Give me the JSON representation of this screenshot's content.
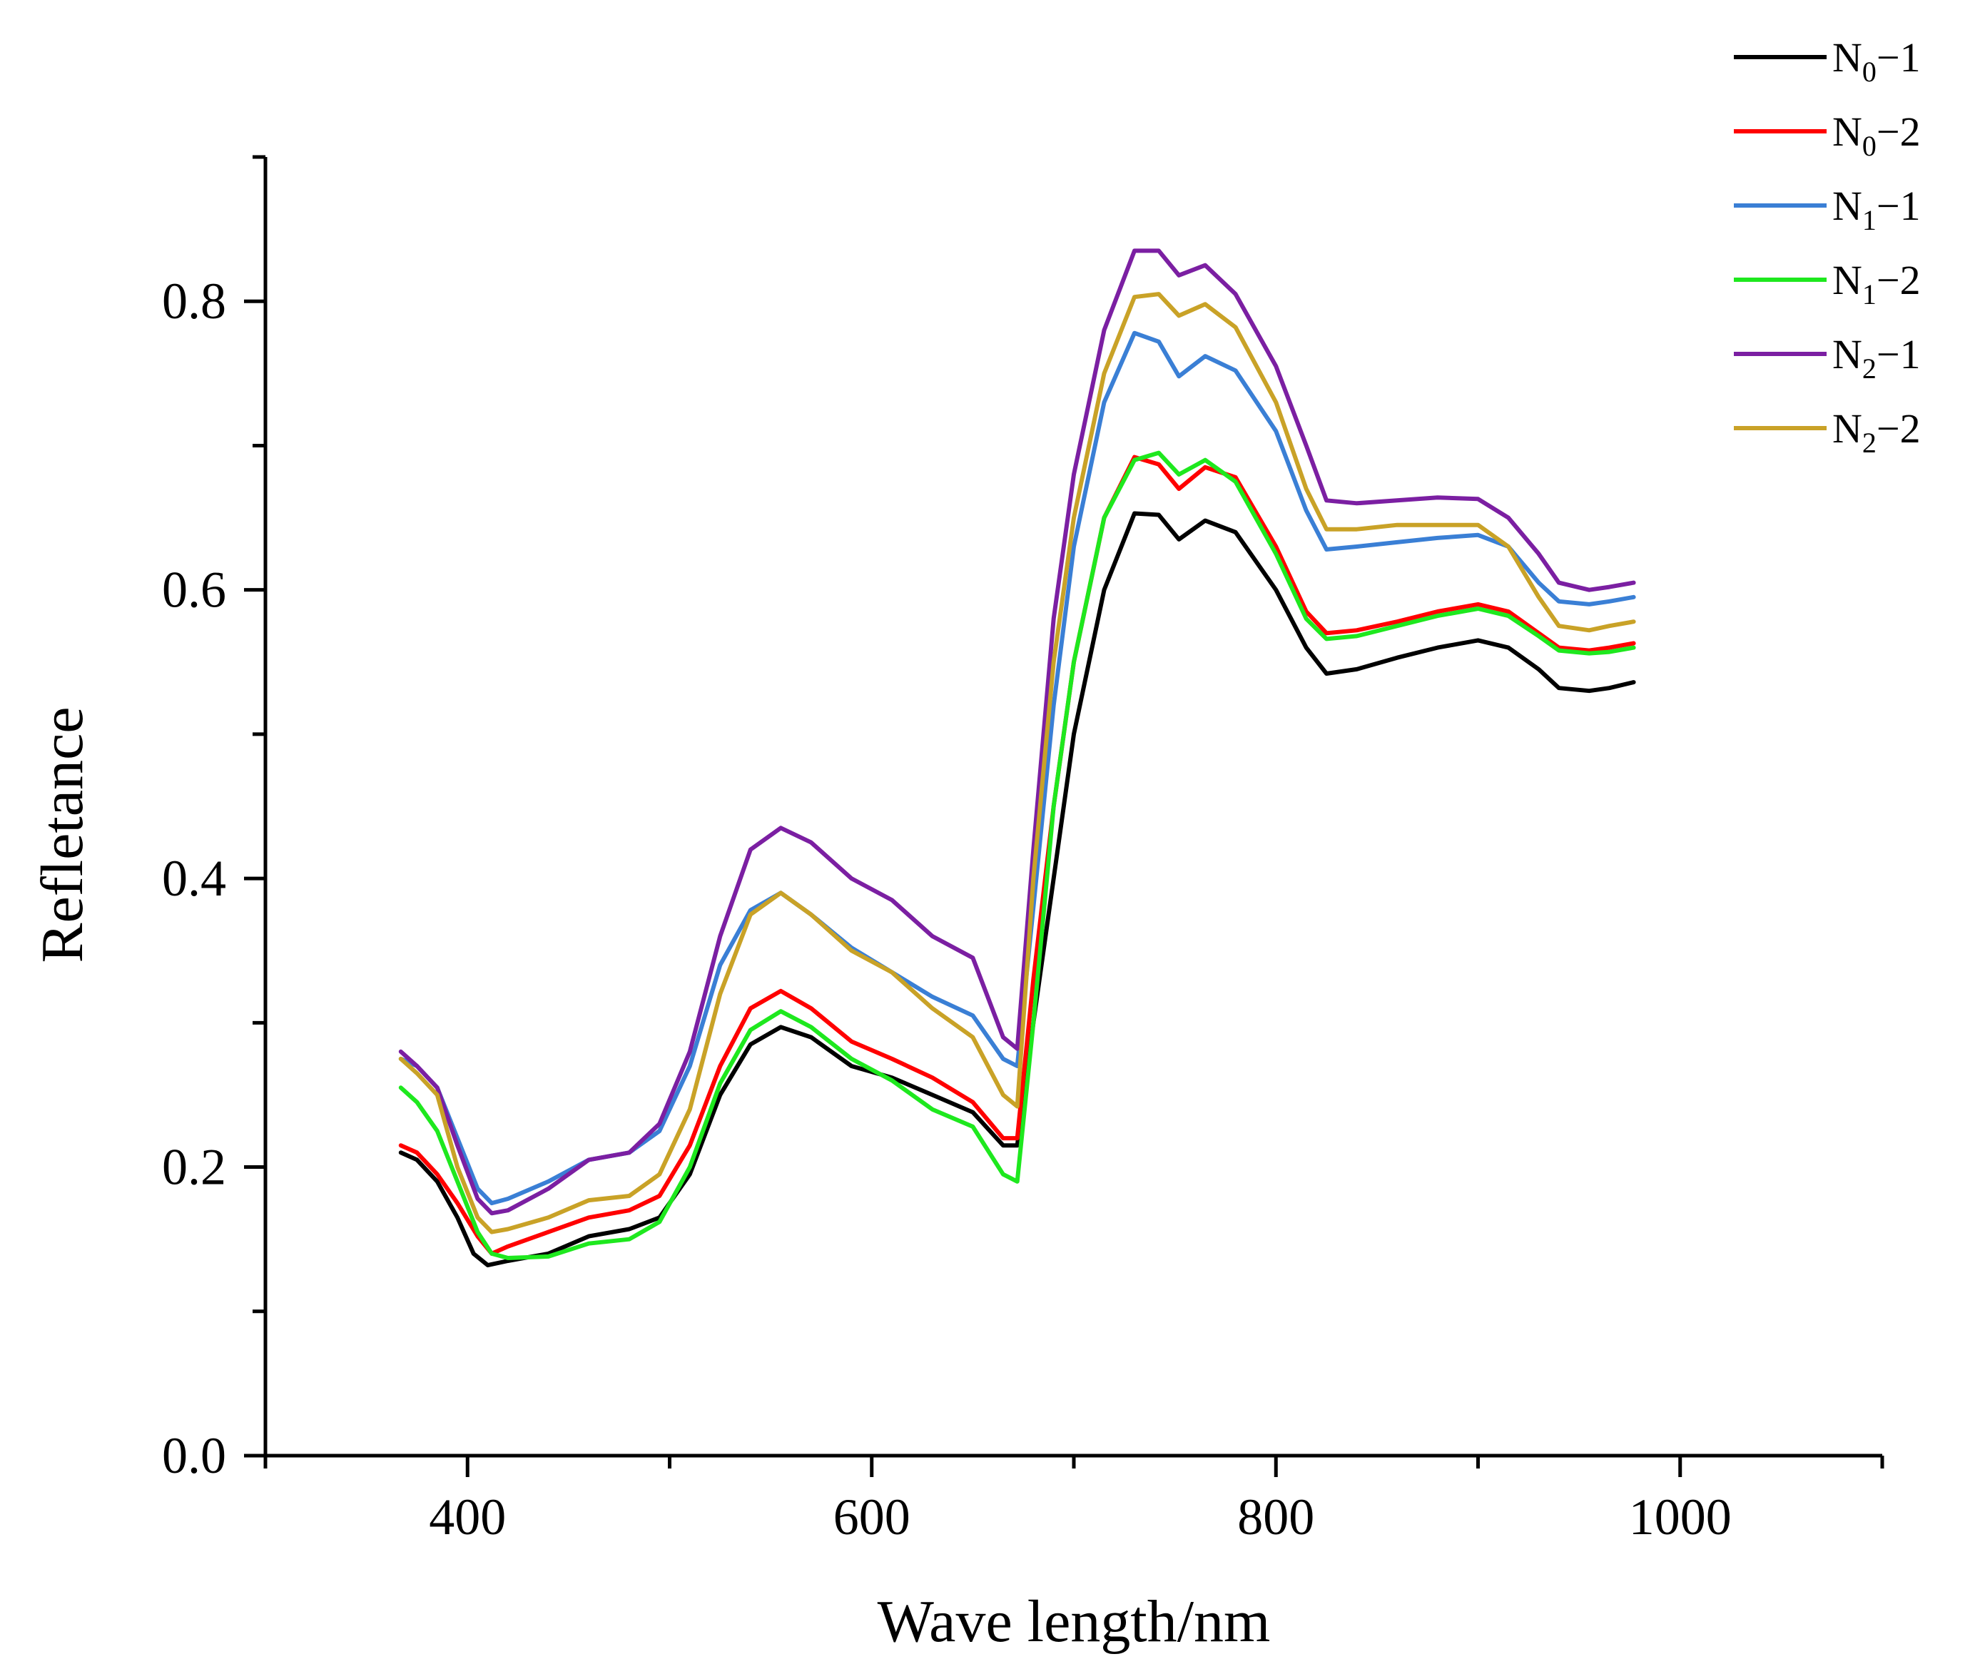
{
  "chart_data": {
    "type": "line",
    "title": "",
    "xlabel": "Wave length/nm",
    "ylabel": "Refletance",
    "xlim": [
      300,
      1100
    ],
    "ylim": [
      0.0,
      0.9
    ],
    "xticks": [
      400,
      600,
      800,
      1000
    ],
    "xtick_labels": [
      "400",
      "600",
      "800",
      "1000"
    ],
    "yticks": [
      0.0,
      0.2,
      0.4,
      0.6,
      0.8
    ],
    "ytick_labels": [
      "0.0",
      "0.2",
      "0.4",
      "0.6",
      "0.8"
    ],
    "grid": false,
    "legend_position": "top-right",
    "series": [
      {
        "name": "N0-1",
        "label_main": "N",
        "label_sub": "0",
        "label_suffix": "−1",
        "color": "#000000",
        "points": [
          [
            367,
            0.21
          ],
          [
            375,
            0.205
          ],
          [
            385,
            0.19
          ],
          [
            395,
            0.165
          ],
          [
            403,
            0.14
          ],
          [
            410,
            0.132
          ],
          [
            420,
            0.135
          ],
          [
            440,
            0.14
          ],
          [
            460,
            0.152
          ],
          [
            480,
            0.157
          ],
          [
            495,
            0.165
          ],
          [
            510,
            0.195
          ],
          [
            525,
            0.25
          ],
          [
            540,
            0.285
          ],
          [
            555,
            0.297
          ],
          [
            570,
            0.29
          ],
          [
            590,
            0.27
          ],
          [
            610,
            0.262
          ],
          [
            630,
            0.25
          ],
          [
            650,
            0.238
          ],
          [
            665,
            0.215
          ],
          [
            672,
            0.215
          ],
          [
            680,
            0.3
          ],
          [
            690,
            0.4
          ],
          [
            700,
            0.5
          ],
          [
            715,
            0.6
          ],
          [
            730,
            0.653
          ],
          [
            742,
            0.652
          ],
          [
            752,
            0.635
          ],
          [
            765,
            0.648
          ],
          [
            780,
            0.64
          ],
          [
            800,
            0.6
          ],
          [
            815,
            0.56
          ],
          [
            825,
            0.542
          ],
          [
            840,
            0.545
          ],
          [
            860,
            0.553
          ],
          [
            880,
            0.56
          ],
          [
            900,
            0.565
          ],
          [
            915,
            0.56
          ],
          [
            930,
            0.545
          ],
          [
            940,
            0.532
          ],
          [
            955,
            0.53
          ],
          [
            965,
            0.532
          ],
          [
            977,
            0.536
          ]
        ]
      },
      {
        "name": "N0-2",
        "label_main": "N",
        "label_sub": "0",
        "label_suffix": "−2",
        "color": "#ff0000",
        "points": [
          [
            367,
            0.215
          ],
          [
            375,
            0.21
          ],
          [
            385,
            0.195
          ],
          [
            395,
            0.175
          ],
          [
            405,
            0.152
          ],
          [
            412,
            0.14
          ],
          [
            420,
            0.145
          ],
          [
            440,
            0.155
          ],
          [
            460,
            0.165
          ],
          [
            480,
            0.17
          ],
          [
            495,
            0.18
          ],
          [
            510,
            0.215
          ],
          [
            525,
            0.27
          ],
          [
            540,
            0.31
          ],
          [
            555,
            0.322
          ],
          [
            570,
            0.31
          ],
          [
            590,
            0.287
          ],
          [
            610,
            0.275
          ],
          [
            630,
            0.262
          ],
          [
            650,
            0.245
          ],
          [
            665,
            0.22
          ],
          [
            672,
            0.22
          ],
          [
            680,
            0.33
          ],
          [
            690,
            0.45
          ],
          [
            700,
            0.55
          ],
          [
            715,
            0.65
          ],
          [
            730,
            0.692
          ],
          [
            742,
            0.687
          ],
          [
            752,
            0.67
          ],
          [
            765,
            0.685
          ],
          [
            780,
            0.678
          ],
          [
            800,
            0.63
          ],
          [
            815,
            0.585
          ],
          [
            825,
            0.57
          ],
          [
            840,
            0.572
          ],
          [
            860,
            0.578
          ],
          [
            880,
            0.585
          ],
          [
            900,
            0.59
          ],
          [
            915,
            0.585
          ],
          [
            930,
            0.57
          ],
          [
            940,
            0.56
          ],
          [
            955,
            0.558
          ],
          [
            965,
            0.56
          ],
          [
            977,
            0.563
          ]
        ]
      },
      {
        "name": "N1-1",
        "label_main": "N",
        "label_sub": "1",
        "label_suffix": "−1",
        "color": "#3a7fd5",
        "points": [
          [
            367,
            0.275
          ],
          [
            375,
            0.27
          ],
          [
            385,
            0.255
          ],
          [
            395,
            0.22
          ],
          [
            405,
            0.185
          ],
          [
            412,
            0.175
          ],
          [
            420,
            0.178
          ],
          [
            440,
            0.19
          ],
          [
            460,
            0.205
          ],
          [
            480,
            0.21
          ],
          [
            495,
            0.225
          ],
          [
            510,
            0.27
          ],
          [
            525,
            0.34
          ],
          [
            540,
            0.378
          ],
          [
            555,
            0.39
          ],
          [
            570,
            0.375
          ],
          [
            590,
            0.352
          ],
          [
            610,
            0.335
          ],
          [
            630,
            0.318
          ],
          [
            650,
            0.305
          ],
          [
            665,
            0.275
          ],
          [
            672,
            0.27
          ],
          [
            680,
            0.38
          ],
          [
            690,
            0.52
          ],
          [
            700,
            0.63
          ],
          [
            715,
            0.73
          ],
          [
            730,
            0.778
          ],
          [
            742,
            0.772
          ],
          [
            752,
            0.748
          ],
          [
            765,
            0.762
          ],
          [
            780,
            0.752
          ],
          [
            800,
            0.71
          ],
          [
            815,
            0.655
          ],
          [
            825,
            0.628
          ],
          [
            840,
            0.63
          ],
          [
            860,
            0.633
          ],
          [
            880,
            0.636
          ],
          [
            900,
            0.638
          ],
          [
            915,
            0.63
          ],
          [
            930,
            0.605
          ],
          [
            940,
            0.592
          ],
          [
            955,
            0.59
          ],
          [
            965,
            0.592
          ],
          [
            977,
            0.595
          ]
        ]
      },
      {
        "name": "N1-2",
        "label_main": "N",
        "label_sub": "1",
        "label_suffix": "−2",
        "color": "#1ee81e",
        "points": [
          [
            367,
            0.255
          ],
          [
            375,
            0.245
          ],
          [
            385,
            0.225
          ],
          [
            395,
            0.19
          ],
          [
            405,
            0.155
          ],
          [
            412,
            0.14
          ],
          [
            420,
            0.137
          ],
          [
            440,
            0.138
          ],
          [
            460,
            0.147
          ],
          [
            480,
            0.15
          ],
          [
            495,
            0.162
          ],
          [
            510,
            0.2
          ],
          [
            525,
            0.258
          ],
          [
            540,
            0.295
          ],
          [
            555,
            0.308
          ],
          [
            570,
            0.297
          ],
          [
            590,
            0.275
          ],
          [
            610,
            0.26
          ],
          [
            630,
            0.24
          ],
          [
            650,
            0.228
          ],
          [
            665,
            0.195
          ],
          [
            672,
            0.19
          ],
          [
            680,
            0.3
          ],
          [
            690,
            0.45
          ],
          [
            700,
            0.55
          ],
          [
            715,
            0.65
          ],
          [
            730,
            0.69
          ],
          [
            742,
            0.695
          ],
          [
            752,
            0.68
          ],
          [
            765,
            0.69
          ],
          [
            780,
            0.675
          ],
          [
            800,
            0.625
          ],
          [
            815,
            0.58
          ],
          [
            825,
            0.566
          ],
          [
            840,
            0.568
          ],
          [
            860,
            0.575
          ],
          [
            880,
            0.582
          ],
          [
            900,
            0.587
          ],
          [
            915,
            0.582
          ],
          [
            930,
            0.568
          ],
          [
            940,
            0.558
          ],
          [
            955,
            0.556
          ],
          [
            965,
            0.557
          ],
          [
            977,
            0.56
          ]
        ]
      },
      {
        "name": "N2-1",
        "label_main": "N",
        "label_sub": "2",
        "label_suffix": "−1",
        "color": "#7b1fa2",
        "points": [
          [
            367,
            0.28
          ],
          [
            375,
            0.27
          ],
          [
            385,
            0.255
          ],
          [
            395,
            0.215
          ],
          [
            405,
            0.178
          ],
          [
            412,
            0.168
          ],
          [
            420,
            0.17
          ],
          [
            440,
            0.185
          ],
          [
            460,
            0.205
          ],
          [
            480,
            0.21
          ],
          [
            495,
            0.23
          ],
          [
            510,
            0.28
          ],
          [
            525,
            0.36
          ],
          [
            540,
            0.42
          ],
          [
            555,
            0.435
          ],
          [
            570,
            0.425
          ],
          [
            590,
            0.4
          ],
          [
            610,
            0.385
          ],
          [
            630,
            0.36
          ],
          [
            650,
            0.345
          ],
          [
            665,
            0.29
          ],
          [
            672,
            0.282
          ],
          [
            680,
            0.42
          ],
          [
            690,
            0.58
          ],
          [
            700,
            0.68
          ],
          [
            715,
            0.78
          ],
          [
            730,
            0.835
          ],
          [
            742,
            0.835
          ],
          [
            752,
            0.818
          ],
          [
            765,
            0.825
          ],
          [
            780,
            0.805
          ],
          [
            800,
            0.755
          ],
          [
            815,
            0.7
          ],
          [
            825,
            0.662
          ],
          [
            840,
            0.66
          ],
          [
            860,
            0.662
          ],
          [
            880,
            0.664
          ],
          [
            900,
            0.663
          ],
          [
            915,
            0.65
          ],
          [
            930,
            0.625
          ],
          [
            940,
            0.605
          ],
          [
            955,
            0.6
          ],
          [
            965,
            0.602
          ],
          [
            977,
            0.605
          ]
        ]
      },
      {
        "name": "N2-2",
        "label_main": "N",
        "label_sub": "2",
        "label_suffix": "−2",
        "color": "#c9a227",
        "points": [
          [
            367,
            0.275
          ],
          [
            375,
            0.265
          ],
          [
            385,
            0.25
          ],
          [
            395,
            0.2
          ],
          [
            405,
            0.165
          ],
          [
            412,
            0.155
          ],
          [
            420,
            0.157
          ],
          [
            440,
            0.165
          ],
          [
            460,
            0.177
          ],
          [
            480,
            0.18
          ],
          [
            495,
            0.195
          ],
          [
            510,
            0.24
          ],
          [
            525,
            0.32
          ],
          [
            540,
            0.375
          ],
          [
            555,
            0.39
          ],
          [
            570,
            0.375
          ],
          [
            590,
            0.35
          ],
          [
            610,
            0.335
          ],
          [
            630,
            0.31
          ],
          [
            650,
            0.29
          ],
          [
            665,
            0.25
          ],
          [
            672,
            0.242
          ],
          [
            680,
            0.4
          ],
          [
            690,
            0.55
          ],
          [
            700,
            0.65
          ],
          [
            715,
            0.75
          ],
          [
            730,
            0.803
          ],
          [
            742,
            0.805
          ],
          [
            752,
            0.79
          ],
          [
            765,
            0.798
          ],
          [
            780,
            0.782
          ],
          [
            800,
            0.73
          ],
          [
            815,
            0.67
          ],
          [
            825,
            0.642
          ],
          [
            840,
            0.642
          ],
          [
            860,
            0.645
          ],
          [
            880,
            0.645
          ],
          [
            900,
            0.645
          ],
          [
            915,
            0.63
          ],
          [
            930,
            0.595
          ],
          [
            940,
            0.575
          ],
          [
            955,
            0.572
          ],
          [
            965,
            0.575
          ],
          [
            977,
            0.578
          ]
        ]
      }
    ]
  }
}
